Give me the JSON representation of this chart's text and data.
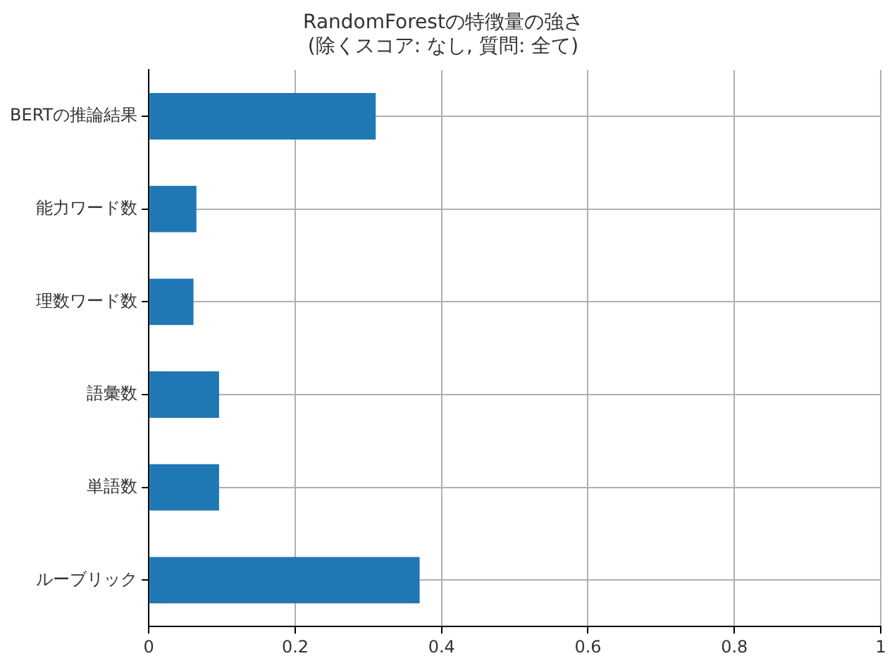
{
  "chart_data": {
    "type": "bar",
    "orientation": "horizontal",
    "title": "RandomForestの特徴量の強さ",
    "subtitle": "(除くスコア: なし, 質問: 全て)",
    "categories": [
      "BERTの推論結果",
      "能力ワード数",
      "理数ワード数",
      "語彙数",
      "単語数",
      "ルーブリック"
    ],
    "values": [
      0.31,
      0.065,
      0.061,
      0.096,
      0.096,
      0.37
    ],
    "color": "#1f77b4",
    "xlim": [
      0,
      1
    ],
    "xticks": [
      0,
      0.2,
      0.4,
      0.6,
      0.8,
      1.0
    ],
    "grid": true,
    "legend": false
  }
}
